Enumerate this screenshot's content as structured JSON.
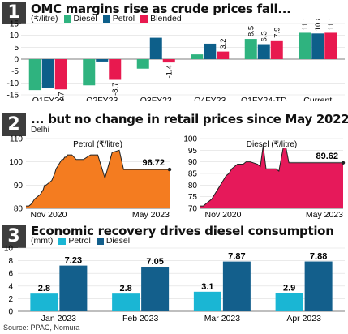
{
  "colors": {
    "diesel": "#2fb37f",
    "petrol": "#0d5f8a",
    "blended": "#e8194f",
    "petrol_area": "#f47c20",
    "diesel_area": "#e6195a",
    "consumption_petrol": "#1ab6d4",
    "consumption_diesel": "#135f8c",
    "number_box": "#3d3d3d"
  },
  "panel1": {
    "number": "1",
    "title": "OMC margins rise as crude prices fall...",
    "unit": "(₹/litre)"
  },
  "panel2": {
    "number": "2",
    "title": "... but no change in retail prices since May 2022",
    "subtitle": "Delhi"
  },
  "panel3": {
    "number": "3",
    "title": "Economic recovery drives diesel consumption",
    "unit": "(mmt)"
  },
  "source": "Source: PPAC, Nomura",
  "chart_data": [
    {
      "type": "bar",
      "categories": [
        "Q1FY23",
        "Q2FY23",
        "Q3FY23",
        "Q4FY23",
        "Q1FY24-TD",
        "Current"
      ],
      "series": [
        {
          "name": "Diesel",
          "values": [
            -13.0,
            -11.0,
            -4.0,
            2.0,
            8.5,
            11.1
          ]
        },
        {
          "name": "Petrol",
          "values": [
            -12.0,
            -1.0,
            9.0,
            6.5,
            6.3,
            10.8
          ]
        },
        {
          "name": "Blended",
          "values": [
            -12.7,
            -8.7,
            -1.4,
            3.2,
            7.9,
            11.1
          ]
        }
      ],
      "data_labels": {
        "Diesel": [
          "",
          "",
          "",
          "",
          "8.5",
          "11.1"
        ],
        "Petrol": [
          "",
          "",
          "",
          "",
          "6.3",
          "10.8"
        ],
        "Blended": [
          "-12.7",
          "-8.7",
          "-1.4",
          "3.2",
          "7.9",
          "11.1"
        ]
      },
      "ylim": [
        -15,
        15
      ],
      "yticks": [
        15,
        10,
        5,
        0,
        -5,
        -10,
        -15
      ],
      "legend": "top"
    },
    {
      "type": "area",
      "title": "Petrol (₹/litre)",
      "ylim": [
        80,
        110
      ],
      "yticks": [
        80,
        90,
        100,
        110
      ],
      "xticks": [
        "Nov 2020",
        "May 2023"
      ],
      "x": [
        0,
        2,
        4,
        6,
        8,
        10,
        12,
        13,
        14,
        16,
        18,
        20,
        21,
        22,
        23,
        24,
        25,
        26,
        27,
        28,
        29,
        30,
        32,
        35,
        40,
        45,
        50,
        55,
        60,
        65,
        68,
        70,
        75,
        80,
        85,
        90,
        95,
        100
      ],
      "y": [
        81,
        81,
        82,
        84,
        85,
        86,
        88,
        90,
        90,
        91,
        92,
        95,
        97,
        98,
        99,
        100,
        101,
        101,
        102,
        102,
        103,
        103,
        103,
        101,
        101,
        103,
        103,
        93,
        104,
        105,
        96.72,
        96.72,
        96.72,
        96.72,
        96.72,
        96.72,
        96.72,
        96.72
      ],
      "end_label": "96.72"
    },
    {
      "type": "area",
      "title": "Diesel (₹/litre)",
      "ylim": [
        70,
        100
      ],
      "yticks": [
        70,
        75,
        80,
        85,
        90,
        95,
        100
      ],
      "xticks": [
        "Nov 2020",
        "May 2023"
      ],
      "x": [
        0,
        2,
        4,
        6,
        8,
        10,
        12,
        14,
        16,
        18,
        20,
        22,
        24,
        26,
        28,
        30,
        32,
        35,
        40,
        42,
        44,
        46,
        48,
        50,
        53,
        55,
        58,
        60,
        62,
        65,
        68,
        70,
        75,
        80,
        85,
        90,
        95,
        100
      ],
      "y": [
        71,
        71,
        72,
        73,
        74,
        76,
        78,
        80,
        82,
        84,
        85,
        87,
        88,
        89,
        89,
        89,
        90,
        90,
        89,
        88,
        97,
        87,
        87,
        87,
        87,
        86,
        96,
        96,
        89.62,
        89.62,
        89.62,
        89.62,
        89.62,
        89.62,
        89.62,
        89.62,
        89.62,
        89.62
      ],
      "end_label": "89.62"
    },
    {
      "type": "bar",
      "categories": [
        "Jan 2023",
        "Feb 2023",
        "Mar 2023",
        "Apr 2023"
      ],
      "series": [
        {
          "name": "Petrol",
          "values": [
            2.8,
            2.8,
            3.1,
            2.9
          ]
        },
        {
          "name": "Diesel",
          "values": [
            7.23,
            7.05,
            7.87,
            7.88
          ]
        }
      ],
      "ylim": [
        0,
        10
      ],
      "yticks": [
        0,
        2,
        4,
        6,
        8,
        10
      ],
      "legend": "top"
    }
  ]
}
